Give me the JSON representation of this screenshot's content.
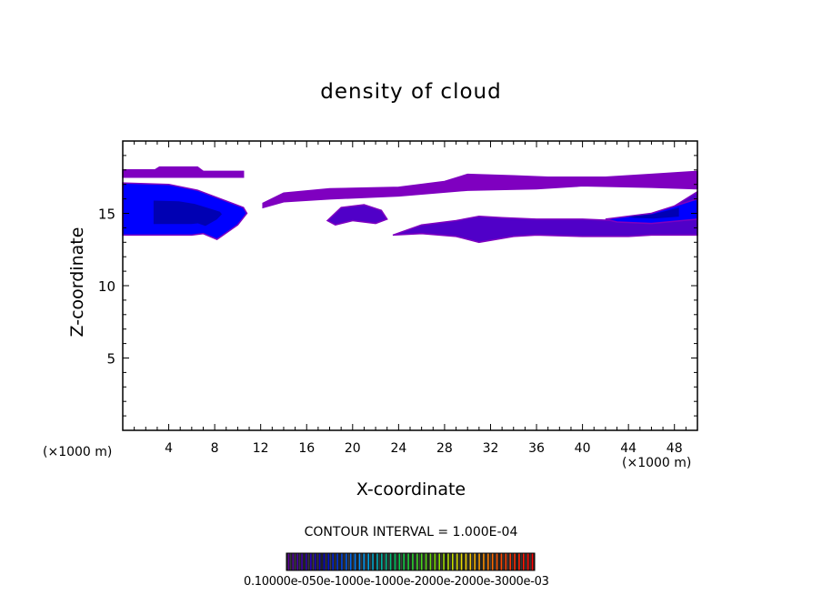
{
  "chart_data": {
    "type": "heatmap",
    "title": "density of cloud",
    "xlabel": "X-coordinate",
    "ylabel": "Z-coordinate",
    "x_unit_left": "(×1000 m)",
    "x_unit_right": "(×1000 m)",
    "xlim": [
      0,
      50
    ],
    "ylim": [
      0,
      20
    ],
    "x_ticks": [
      "4",
      "8",
      "12",
      "16",
      "20",
      "24",
      "28",
      "32",
      "36",
      "40",
      "44",
      "48"
    ],
    "y_ticks": [
      "5",
      "10",
      "15"
    ],
    "contour_interval_text": "CONTOUR INTERVAL = 1.000E-04",
    "colorbar_labels_text": "0.10000e-050e-1000e-1000e-2000e-2000e-3000e-03",
    "colors": {
      "low": "#7f00c0",
      "mid": "#5000c8",
      "high": "#0000ff",
      "peak": "#0000a0"
    },
    "regions": [
      {
        "name": "upper-left cloud",
        "x": [
          0,
          0,
          2.8,
          3.2,
          6.5,
          7,
          10.5,
          10.5,
          0
        ],
        "z": [
          17.8,
          18,
          18,
          18.2,
          18.2,
          17.9,
          17.9,
          17.5,
          17.5
        ],
        "intensity": 1
      },
      {
        "name": "left core",
        "x": [
          0,
          0,
          4,
          6.5,
          8.5,
          10.5,
          10.8,
          10,
          8.2,
          7,
          6,
          0
        ],
        "z": [
          13.5,
          17.1,
          17,
          16.6,
          16,
          15.4,
          15,
          14.2,
          13.2,
          13.6,
          13.5,
          13.5
        ],
        "intensity": 3
      },
      {
        "name": "upper band",
        "x": [
          12.2,
          14,
          18,
          24,
          28,
          30,
          34,
          37,
          42,
          46,
          50,
          50,
          46,
          40,
          36,
          30,
          24,
          18,
          14,
          12.2
        ],
        "z": [
          15.7,
          16.4,
          16.7,
          16.8,
          17.2,
          17.7,
          17.6,
          17.5,
          17.5,
          17.7,
          17.9,
          16.7,
          16.8,
          16.9,
          16.7,
          16.6,
          16.2,
          16,
          15.8,
          15.4
        ],
        "intensity": 1
      },
      {
        "name": "small patch",
        "x": [
          17.8,
          19,
          21,
          22.5,
          23,
          22,
          20,
          18.5,
          17.8
        ],
        "z": [
          14.5,
          15.4,
          15.6,
          15.2,
          14.6,
          14.3,
          14.5,
          14.2,
          14.5
        ],
        "intensity": 2
      },
      {
        "name": "lower band",
        "x": [
          23.5,
          26,
          29,
          31,
          33,
          36,
          40,
          43,
          46,
          48,
          50,
          50,
          46,
          44,
          40,
          36,
          34,
          31,
          29,
          26,
          23.5
        ],
        "z": [
          13.5,
          14.2,
          14.5,
          14.8,
          14.7,
          14.6,
          14.6,
          14.5,
          14.8,
          15.5,
          16.5,
          13.5,
          13.5,
          13.4,
          13.4,
          13.5,
          13.4,
          13,
          13.4,
          13.6,
          13.5
        ],
        "intensity": 2
      },
      {
        "name": "right core",
        "x": [
          42,
          46,
          48,
          50,
          50,
          46,
          43
        ],
        "z": [
          14.6,
          15,
          15.5,
          16,
          14.6,
          14.3,
          14.4
        ],
        "intensity": 3
      }
    ]
  }
}
